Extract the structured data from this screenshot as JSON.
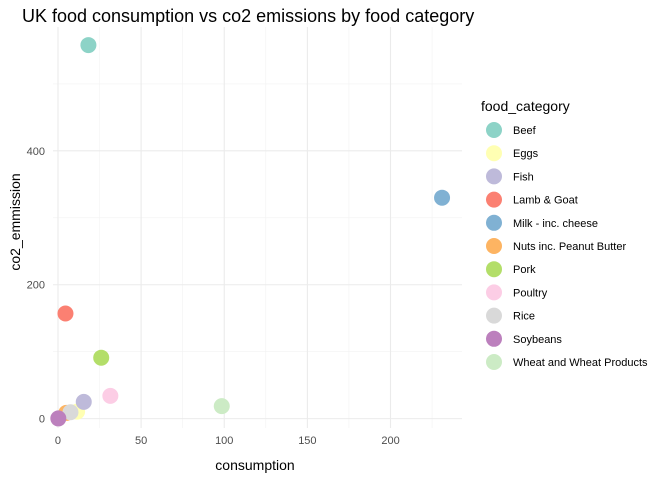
{
  "chart_data": {
    "type": "scatter",
    "title": "UK food consumption vs co2 emissions by food category",
    "xlabel": "consumption",
    "ylabel": "co2_emmission",
    "xlim": [
      -3,
      243
    ],
    "ylim": [
      -14,
      585
    ],
    "x_ticks": [
      0,
      50,
      100,
      150,
      200
    ],
    "y_ticks": [
      0,
      200,
      400
    ],
    "grid": true,
    "legend_title": "food_category",
    "legend_position": "right",
    "series": [
      {
        "name": "Beef",
        "color": "#8DD3C7",
        "x": 18.3,
        "y": 558
      },
      {
        "name": "Eggs",
        "color": "#FFFFB3",
        "x": 11.5,
        "y": 10.5
      },
      {
        "name": "Fish",
        "color": "#BEBADA",
        "x": 15.5,
        "y": 25
      },
      {
        "name": "Lamb & Goat",
        "color": "#FB8072",
        "x": 4.5,
        "y": 157
      },
      {
        "name": "Milk - inc. cheese",
        "color": "#80B1D3",
        "x": 231,
        "y": 330
      },
      {
        "name": "Nuts inc. Peanut Butter",
        "color": "#FDB462",
        "x": 5,
        "y": 8.5
      },
      {
        "name": "Pork",
        "color": "#B3DE69",
        "x": 26,
        "y": 91
      },
      {
        "name": "Poultry",
        "color": "#FCCDE5",
        "x": 31.5,
        "y": 34
      },
      {
        "name": "Rice",
        "color": "#D9D9D9",
        "x": 7.5,
        "y": 9.5
      },
      {
        "name": "Soybeans",
        "color": "#BC80BD",
        "x": 0.2,
        "y": 0.3
      },
      {
        "name": "Wheat and Wheat Products",
        "color": "#CCEBC5",
        "x": 98.5,
        "y": 18.7
      }
    ]
  }
}
